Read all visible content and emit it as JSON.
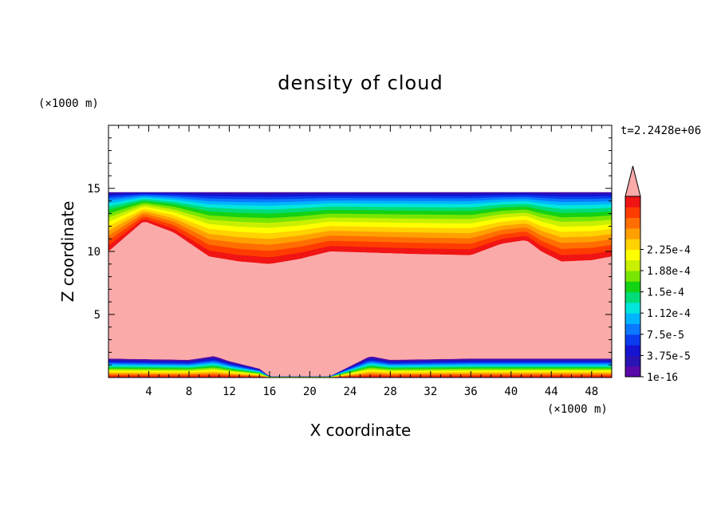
{
  "chart_data": {
    "type": "heatmap",
    "title": "density of cloud",
    "xlabel": "X coordinate",
    "ylabel": "Z coordinate",
    "x_unit": "(×1000 m)",
    "y_unit": "(×1000 m)",
    "time_label": "t=2.2428e+06",
    "xlim": [
      0,
      50
    ],
    "ylim": [
      0,
      20
    ],
    "x_ticks": [
      4,
      8,
      12,
      16,
      20,
      24,
      28,
      32,
      36,
      40,
      44,
      48
    ],
    "y_ticks": [
      5,
      10,
      15
    ],
    "colorbar_labels": [
      "1e-16",
      "3.75e-5",
      "7.5e-5",
      "1.12e-4",
      "1.5e-4",
      "1.88e-4",
      "2.25e-4"
    ],
    "colorbar_colors": [
      "#5a0aa8",
      "#2a14b4",
      "#1414d2",
      "#0a3cf0",
      "#0a78ff",
      "#00b4ff",
      "#00e6dc",
      "#00dc78",
      "#14d214",
      "#78e600",
      "#c8f000",
      "#ffff00",
      "#ffd200",
      "#ffa000",
      "#ff6e00",
      "#ff3c00",
      "#f01414"
    ],
    "overflow_color": "#fbaaaa",
    "cloud_top_z": 14.7,
    "upper_cloud_base_z": [
      [
        0,
        10.0
      ],
      [
        3.5,
        12.4
      ],
      [
        6.5,
        11.5
      ],
      [
        10,
        9.6
      ],
      [
        13,
        9.2
      ],
      [
        16,
        9.0
      ],
      [
        19,
        9.4
      ],
      [
        22,
        10.0
      ],
      [
        30,
        9.8
      ],
      [
        36,
        9.7
      ],
      [
        39,
        10.6
      ],
      [
        41.5,
        10.9
      ],
      [
        43,
        10.0
      ],
      [
        45,
        9.2
      ],
      [
        48,
        9.3
      ],
      [
        50,
        9.6
      ]
    ],
    "lower_layer_top_z": [
      [
        0,
        1.5
      ],
      [
        8,
        1.4
      ],
      [
        10.5,
        1.7
      ],
      [
        12,
        1.3
      ],
      [
        15,
        0.7
      ],
      [
        16,
        0.1
      ],
      [
        22,
        0.1
      ],
      [
        24,
        0.9
      ],
      [
        26,
        1.7
      ],
      [
        28,
        1.4
      ],
      [
        36,
        1.5
      ],
      [
        50,
        1.5
      ]
    ]
  }
}
